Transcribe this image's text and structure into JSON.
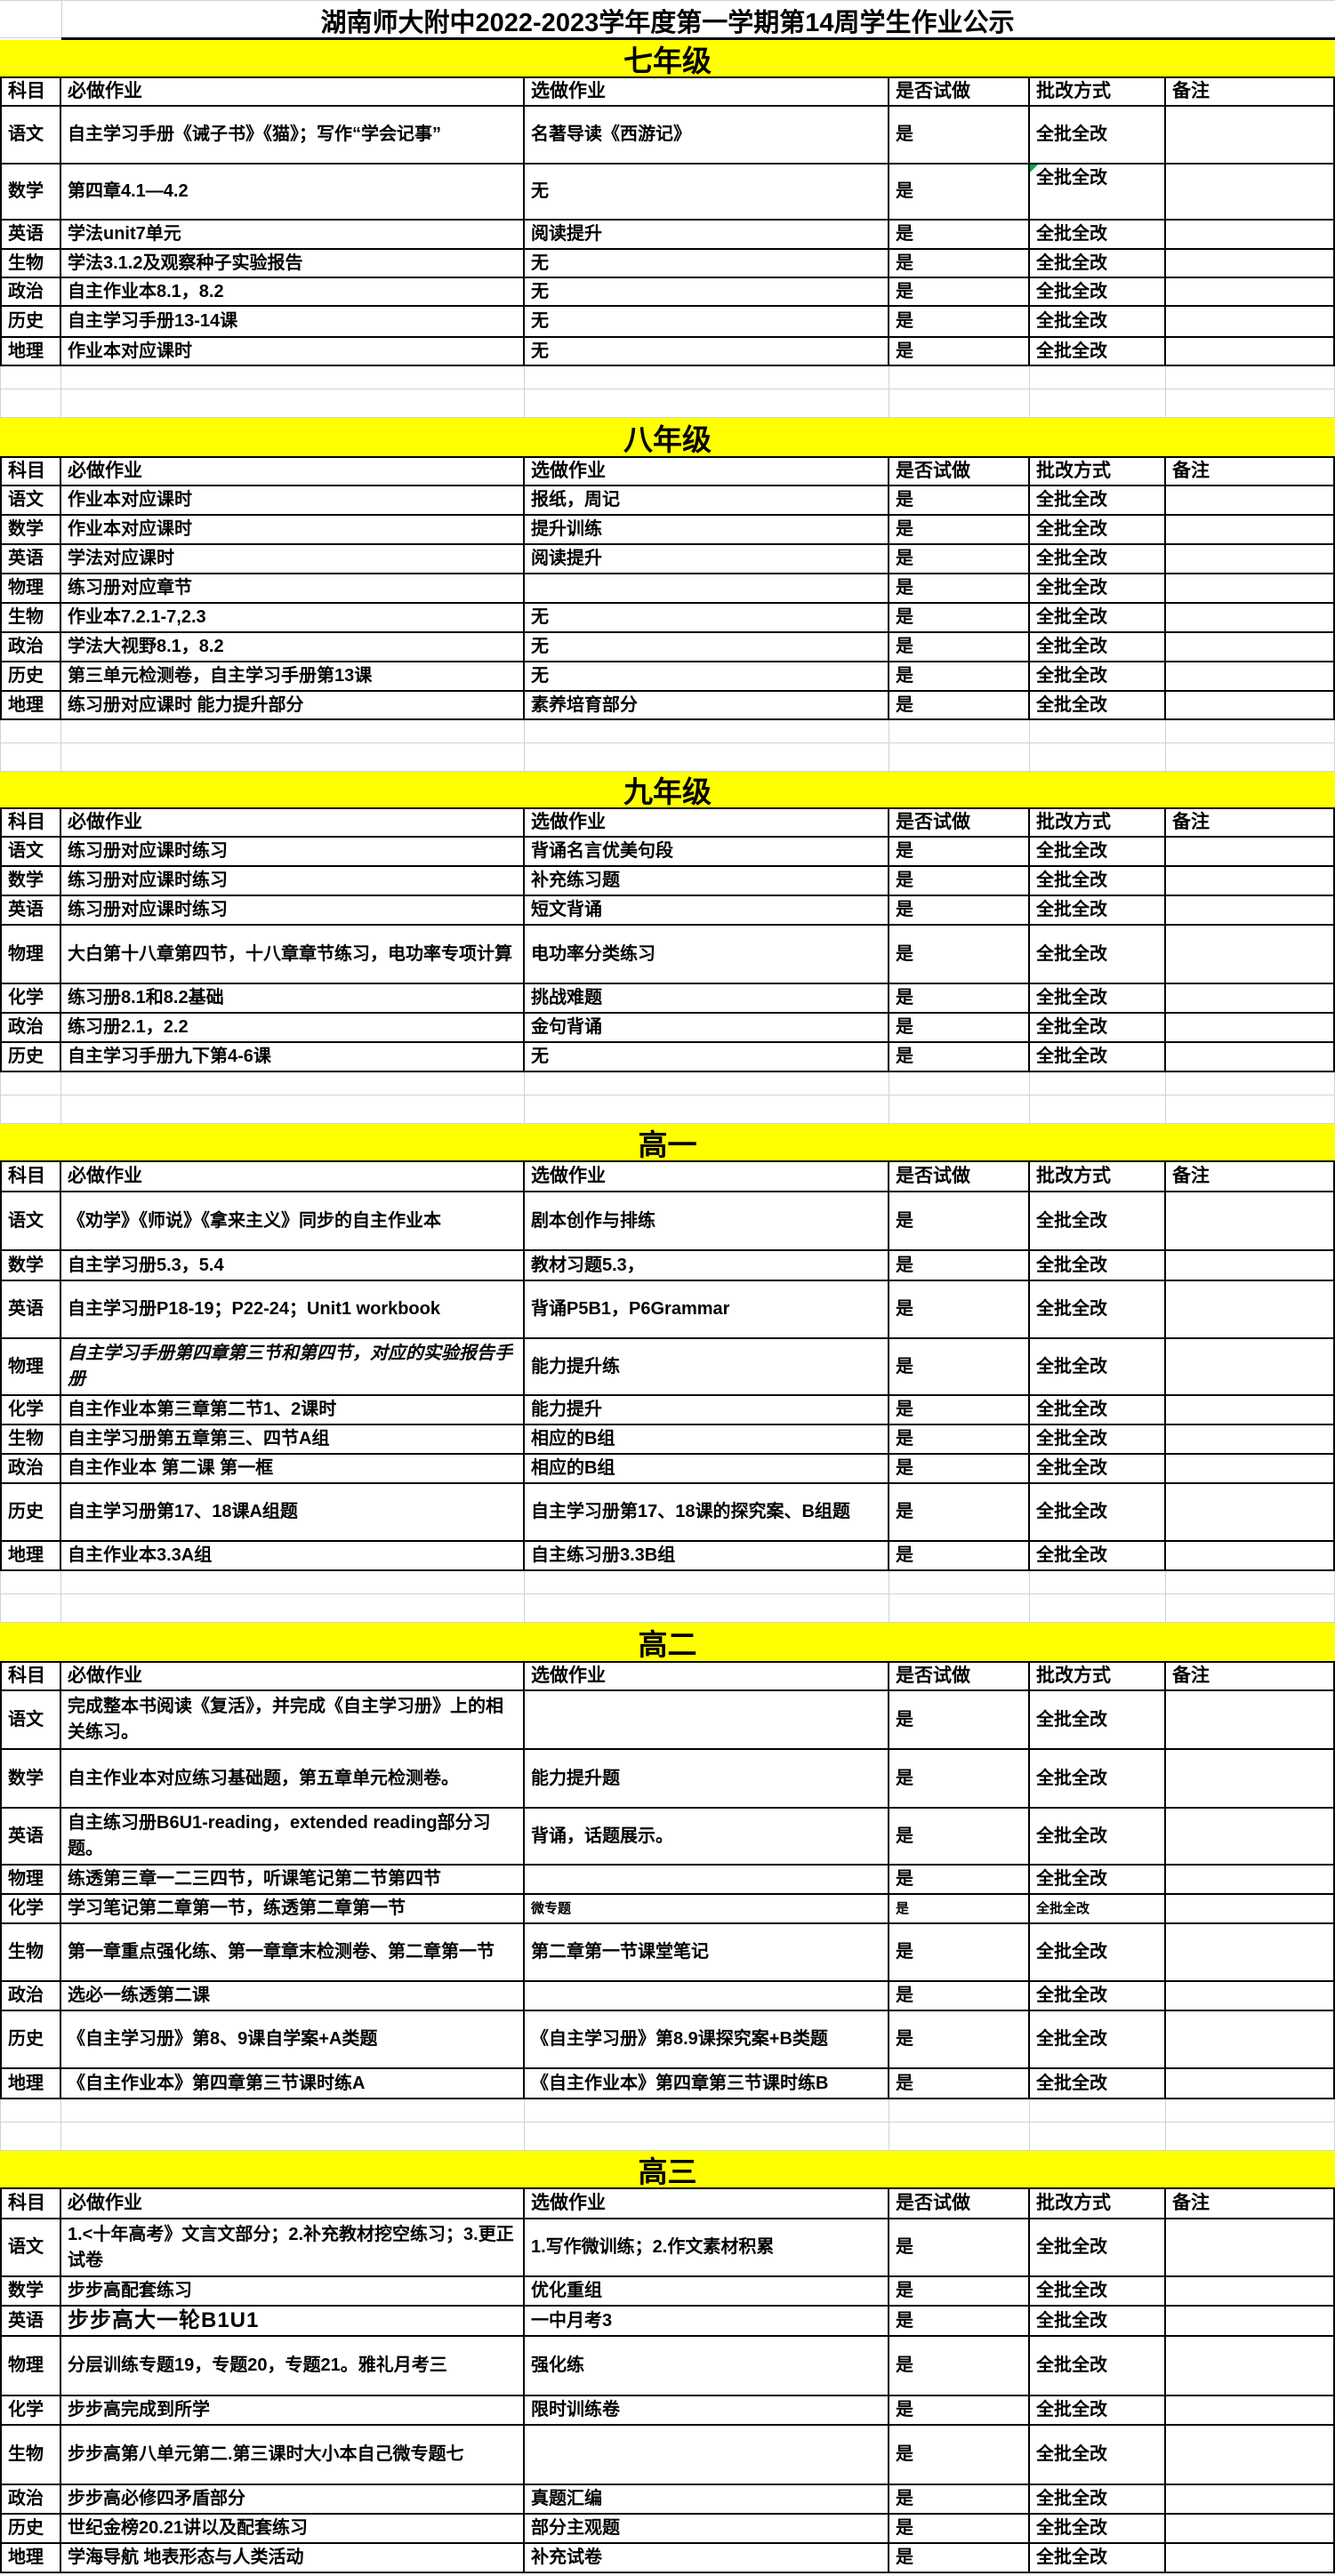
{
  "page": {
    "title": "湖南师大附中2022-2023学年度第一学期第14周学生作业公示"
  },
  "columns": [
    "科目",
    "必做作业",
    "选做作业",
    "是否试做",
    "批改方式",
    "备注"
  ],
  "colors": {
    "banner_bg": "#FFFF00",
    "gridline": "#CCD3DD",
    "table_border": "#000000",
    "flag_green": "#00A651"
  },
  "icons": {
    "error_flag": "green-corner-triangle"
  },
  "sections": [
    {
      "grade": "七年级",
      "rows": [
        {
          "subject": "语文",
          "required": "自主学习手册《诫子书》《猫》；写作“学会记事”",
          "optional": "名著导读《西游记》",
          "trial": "是",
          "grading": "全批全改",
          "remark": "",
          "h": 65
        },
        {
          "subject": "数学",
          "required": "第四章4.1—4.2",
          "optional": "无",
          "trial": "是",
          "grading": "全批全改",
          "remark": "",
          "h": 63,
          "gradingTop": true,
          "flag": true
        },
        {
          "subject": "英语",
          "required": "学法unit7单元",
          "optional": "阅读提升",
          "trial": "是",
          "grading": "全批全改",
          "remark": "",
          "h": 33
        },
        {
          "subject": "生物",
          "required": "学法3.1.2及观察种子实验报告",
          "optional": "无",
          "trial": "是",
          "grading": "全批全改",
          "remark": "",
          "h": 32
        },
        {
          "subject": "政治",
          "required": "自主作业本8.1，8.2",
          "optional": "无",
          "trial": "是",
          "grading": "全批全改",
          "remark": "",
          "h": 32
        },
        {
          "subject": "历史",
          "required": "自主学习手册13-14课",
          "optional": "无",
          "trial": "是",
          "grading": "全批全改",
          "remark": "",
          "h": 35
        },
        {
          "subject": "地理",
          "required": "作业本对应课时",
          "optional": "无",
          "trial": "是",
          "grading": "全批全改",
          "remark": "",
          "h": 32
        }
      ]
    },
    {
      "grade": "八年级",
      "rows": [
        {
          "subject": "语文",
          "required": "作业本对应课时",
          "optional": "报纸，周记",
          "trial": "是",
          "grading": "全批全改",
          "remark": "",
          "h": 33
        },
        {
          "subject": "数学",
          "required": "作业本对应课时",
          "optional": "提升训练",
          "trial": "是",
          "grading": "全批全改",
          "remark": "",
          "h": 33
        },
        {
          "subject": "英语",
          "required": "学法对应课时",
          "optional": "阅读提升",
          "trial": "是",
          "grading": "全批全改",
          "remark": "",
          "h": 33
        },
        {
          "subject": "物理",
          "required": "练习册对应章节",
          "optional": "",
          "trial": "是",
          "grading": "全批全改",
          "remark": "",
          "h": 33
        },
        {
          "subject": "生物",
          "required": "作业本7.2.1-7,2.3",
          "optional": "无",
          "trial": "是",
          "grading": "全批全改",
          "remark": "",
          "h": 33
        },
        {
          "subject": "政治",
          "required": "学法大视野8.1，8.2",
          "optional": "无",
          "trial": "是",
          "grading": "全批全改",
          "remark": "",
          "h": 33
        },
        {
          "subject": "历史",
          "required": "第三单元检测卷，自主学习手册第13课",
          "optional": "无",
          "trial": "是",
          "grading": "全批全改",
          "remark": "",
          "h": 33
        },
        {
          "subject": "地理",
          "required": "练习册对应课时 能力提升部分",
          "optional": "素养培育部分",
          "trial": "是",
          "grading": "全批全改",
          "remark": "",
          "h": 32
        }
      ]
    },
    {
      "grade": "九年级",
      "rows": [
        {
          "subject": "语文",
          "required": "练习册对应课时练习",
          "optional": "背诵名言优美句段",
          "trial": "是",
          "grading": "全批全改",
          "remark": "",
          "h": 33
        },
        {
          "subject": "数学",
          "required": "练习册对应课时练习",
          "optional": "补充练习题",
          "trial": "是",
          "grading": "全批全改",
          "remark": "",
          "h": 33
        },
        {
          "subject": "英语",
          "required": "练习册对应课时练习",
          "optional": "短文背诵",
          "trial": "是",
          "grading": "全批全改",
          "remark": "",
          "h": 33
        },
        {
          "subject": "物理",
          "required": "大白第十八章第四节，十八章章节练习，电功率专项计算",
          "optional": "电功率分类练习",
          "trial": "是",
          "grading": "全批全改",
          "remark": "",
          "h": 66
        },
        {
          "subject": "化学",
          "required": "练习册8.1和8.2基础",
          "optional": "挑战难题",
          "trial": "是",
          "grading": "全批全改",
          "remark": "",
          "h": 33
        },
        {
          "subject": "政治",
          "required": "练习册2.1，2.2",
          "optional": "金句背诵",
          "trial": "是",
          "grading": "全批全改",
          "remark": "",
          "h": 33
        },
        {
          "subject": "历史",
          "required": "自主学习手册九下第4-6课",
          "optional": "无",
          "trial": "是",
          "grading": "全批全改",
          "remark": "",
          "h": 33
        }
      ]
    },
    {
      "grade": "高一",
      "rows": [
        {
          "subject": "语文",
          "required": "《劝学》《师说》《拿来主义》同步的自主作业本",
          "optional": "剧本创作与排练",
          "trial": "是",
          "grading": "全批全改",
          "remark": "",
          "h": 66
        },
        {
          "subject": "数学",
          "required": "自主学习册5.3，5.4",
          "optional": "教材习题5.3，",
          "trial": "是",
          "grading": "全批全改",
          "remark": "",
          "h": 34
        },
        {
          "subject": "英语",
          "required": "自主学习册P18-19；P22-24；Unit1 workbook",
          "optional": "背诵P5B1，P6Grammar",
          "trial": "是",
          "grading": "全批全改",
          "remark": "",
          "h": 65
        },
        {
          "subject": "物理",
          "required": "自主学习手册第四章第三节和第四节，对应的实验报告手册",
          "optional": "能力提升练",
          "trial": "是",
          "grading": "全批全改",
          "remark": "",
          "h": 64,
          "italicRequired": true
        },
        {
          "subject": "化学",
          "required": "自主作业本第三章第二节1、2课时",
          "optional": "能力提升",
          "trial": "是",
          "grading": "全批全改",
          "remark": "",
          "h": 33
        },
        {
          "subject": "生物",
          "required": "自主学习册第五章第三、四节A组",
          "optional": "相应的B组",
          "trial": "是",
          "grading": "全批全改",
          "remark": "",
          "h": 33
        },
        {
          "subject": "政治",
          "required": "自主作业本 第二课 第一框",
          "optional": "相应的B组",
          "trial": "是",
          "grading": "全批全改",
          "remark": "",
          "h": 33
        },
        {
          "subject": "历史",
          "required": "自主学习册第17、18课A组题",
          "optional": "自主学习册第17、18课的探究案、B组题",
          "trial": "是",
          "grading": "全批全改",
          "remark": "",
          "h": 65
        },
        {
          "subject": "地理",
          "required": "自主作业本3.3A组",
          "optional": "自主练习册3.3B组",
          "trial": "是",
          "grading": "全批全改",
          "remark": "",
          "h": 33
        }
      ]
    },
    {
      "grade": "高二",
      "rows": [
        {
          "subject": "语文",
          "required": "完成整本书阅读《复活》，并完成《自主学习册》上的相关练习。",
          "optional": "",
          "trial": "是",
          "grading": "全批全改",
          "remark": "",
          "h": 66
        },
        {
          "subject": "数学",
          "required": "自主作业本对应练习基础题，第五章单元检测卷。",
          "optional": "能力提升题",
          "trial": "是",
          "grading": "全批全改",
          "remark": "",
          "h": 66
        },
        {
          "subject": "英语",
          "required": "自主练习册B6U1-reading，extended reading部分习题。",
          "optional": "背诵，话题展示。",
          "trial": "是",
          "grading": "全批全改",
          "remark": "",
          "h": 64
        },
        {
          "subject": "物理",
          "required": "练透第三章一二三四节，听课笔记第二节第四节",
          "optional": "",
          "trial": "是",
          "grading": "全批全改",
          "remark": "",
          "h": 33
        },
        {
          "subject": "化学",
          "required": "学习笔记第二章第一节，练透第二章第一节",
          "optional": "微专题",
          "trial": "是",
          "grading": "全批全改",
          "remark": "",
          "h": 33,
          "smallFont": true
        },
        {
          "subject": "生物",
          "required": "第一章重点强化练、第一章章末检测卷、第二章第一节",
          "optional": "第二章第一节课堂笔记",
          "trial": "是",
          "grading": "全批全改",
          "remark": "",
          "h": 65
        },
        {
          "subject": "政治",
          "required": "选必一练透第二课",
          "optional": "",
          "trial": "是",
          "grading": "全批全改",
          "remark": "",
          "h": 33
        },
        {
          "subject": "历史",
          "required": "《自主学习册》第8、9课自学案+A类题",
          "optional": "《自主学习册》第8.9课探究案+B类题",
          "trial": "是",
          "grading": "全批全改",
          "remark": "",
          "h": 65
        },
        {
          "subject": "地理",
          "required": "《自主作业本》第四章第三节课时练A",
          "optional": "《自主作业本》第四章第三节课时练B",
          "trial": "是",
          "grading": "全批全改",
          "remark": "",
          "h": 34
        }
      ]
    },
    {
      "grade": "高三",
      "rows": [
        {
          "subject": "语文",
          "required": "1.<十年高考》文言文部分；2.补充教材挖空练习；3.更正试卷",
          "optional": "1.写作微训练；2.作文素材积累",
          "trial": "是",
          "grading": "全批全改",
          "remark": "",
          "h": 65
        },
        {
          "subject": "数学",
          "required": "步步高配套练习",
          "optional": "优化重组",
          "trial": "是",
          "grading": "全批全改",
          "remark": "",
          "h": 33
        },
        {
          "subject": "英语",
          "required": "步步高大一轮B1U1",
          "optional": "一中月考3",
          "trial": "是",
          "grading": "全批全改",
          "remark": "",
          "h": 34,
          "bigRequired": true
        },
        {
          "subject": "物理",
          "required": "分层训练专题19，专题20，专题21。雅礼月考三",
          "optional": "强化练",
          "trial": "是",
          "grading": "全批全改",
          "remark": "",
          "h": 67
        },
        {
          "subject": "化学",
          "required": "步步高完成到所学",
          "optional": "限时训练卷",
          "trial": "是",
          "grading": "全批全改",
          "remark": "",
          "h": 33
        },
        {
          "subject": "生物",
          "required": "步步高第八单元第二.第三课时大小本自己微专题七",
          "optional": "",
          "trial": "是",
          "grading": "全批全改",
          "remark": "",
          "h": 67
        },
        {
          "subject": "政治",
          "required": "步步高必修四矛盾部分",
          "optional": "真题汇编",
          "trial": "是",
          "grading": "全批全改",
          "remark": "",
          "h": 33
        },
        {
          "subject": "历史",
          "required": "世纪金榜20.21讲以及配套练习",
          "optional": "部分主观题",
          "trial": "是",
          "grading": "全批全改",
          "remark": "",
          "h": 33
        },
        {
          "subject": "地理",
          "required": "学海导航 地表形态与人类活动",
          "optional": "补充试卷",
          "trial": "是",
          "grading": "全批全改",
          "remark": "",
          "h": 33
        }
      ]
    }
  ]
}
